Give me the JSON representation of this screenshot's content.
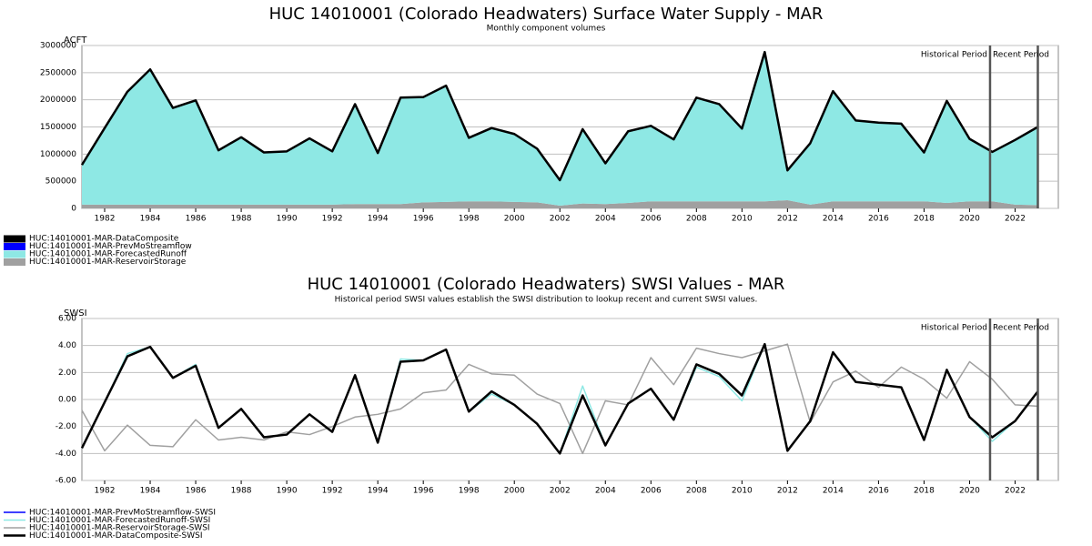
{
  "chart_data": [
    {
      "type": "area",
      "title": "HUC 14010001 (Colorado Headwaters) Surface Water Supply - MAR",
      "subtitle": "Monthly component volumes",
      "ylabel": "ACFT",
      "x": [
        1981,
        1982,
        1983,
        1984,
        1985,
        1986,
        1987,
        1988,
        1989,
        1990,
        1991,
        1992,
        1993,
        1994,
        1995,
        1996,
        1997,
        1998,
        1999,
        2000,
        2001,
        2002,
        2003,
        2004,
        2005,
        2006,
        2007,
        2008,
        2009,
        2010,
        2011,
        2012,
        2013,
        2014,
        2015,
        2016,
        2017,
        2018,
        2019,
        2020,
        2021,
        2022,
        2023
      ],
      "xlim": [
        1981,
        2023.9
      ],
      "xticks": [
        1982,
        1984,
        1986,
        1988,
        1990,
        1992,
        1994,
        1996,
        1998,
        2000,
        2002,
        2004,
        2006,
        2008,
        2010,
        2012,
        2014,
        2016,
        2018,
        2020,
        2022
      ],
      "ylim": [
        0,
        3000000
      ],
      "yticks": [
        0,
        500000,
        1000000,
        1500000,
        2000000,
        2500000,
        3000000
      ],
      "grid": true,
      "period_lines": [
        2020.9,
        2023
      ],
      "annotations": [
        "Historical Period",
        "Recent Period"
      ],
      "series": [
        {
          "name": "HUC:14010001-MAR-DataComposite",
          "color": "#000000",
          "style": "line",
          "values": [
            800000,
            1480000,
            2150000,
            2560000,
            1850000,
            1990000,
            1070000,
            1310000,
            1030000,
            1050000,
            1290000,
            1050000,
            1920000,
            1020000,
            2040000,
            2050000,
            2260000,
            1300000,
            1480000,
            1370000,
            1100000,
            520000,
            1460000,
            830000,
            1420000,
            1520000,
            1270000,
            2040000,
            1920000,
            1470000,
            2880000,
            700000,
            1200000,
            2160000,
            1620000,
            1580000,
            1560000,
            1030000,
            1980000,
            1280000,
            1040000,
            1260000,
            1500000
          ]
        },
        {
          "name": "HUC:14010001-MAR-PrevMoStreamflow",
          "color": "#0000ff",
          "style": "area",
          "values": [
            0,
            0,
            0,
            0,
            0,
            0,
            0,
            0,
            0,
            0,
            0,
            0,
            0,
            0,
            0,
            0,
            0,
            0,
            0,
            0,
            0,
            0,
            0,
            0,
            0,
            0,
            0,
            0,
            0,
            0,
            0,
            0,
            0,
            0,
            0,
            0,
            0,
            0,
            0,
            0,
            0,
            0,
            0
          ]
        },
        {
          "name": "HUC:14010001-MAR-ForecastedRunoff",
          "color": "#8ee8e4",
          "style": "area",
          "values": [
            730000,
            1410000,
            2080000,
            2490000,
            1780000,
            1920000,
            1000000,
            1240000,
            960000,
            980000,
            1220000,
            980000,
            1840000,
            940000,
            1960000,
            1940000,
            2140000,
            1170000,
            1350000,
            1250000,
            990000,
            470000,
            1370000,
            750000,
            1320000,
            1390000,
            1140000,
            1910000,
            1790000,
            1340000,
            2750000,
            550000,
            1130000,
            2030000,
            1490000,
            1450000,
            1430000,
            900000,
            1880000,
            1150000,
            910000,
            1190000,
            1440000
          ]
        },
        {
          "name": "HUC:14010001-MAR-ReservoirStorage",
          "color": "#a0a0a0",
          "style": "area",
          "values": [
            70000,
            70000,
            70000,
            70000,
            70000,
            70000,
            70000,
            70000,
            70000,
            70000,
            70000,
            70000,
            80000,
            80000,
            80000,
            110000,
            120000,
            130000,
            130000,
            120000,
            110000,
            50000,
            90000,
            80000,
            100000,
            130000,
            130000,
            130000,
            130000,
            130000,
            130000,
            150000,
            70000,
            130000,
            130000,
            130000,
            130000,
            130000,
            100000,
            130000,
            130000,
            70000,
            60000
          ]
        }
      ]
    },
    {
      "type": "line",
      "title": "HUC 14010001 (Colorado Headwaters) SWSI Values - MAR",
      "subtitle": "Historical period SWSI values establish the SWSI distribution to lookup recent and current SWSI values.",
      "ylabel": "SWSI",
      "x": [
        1981,
        1982,
        1983,
        1984,
        1985,
        1986,
        1987,
        1988,
        1989,
        1990,
        1991,
        1992,
        1993,
        1994,
        1995,
        1996,
        1997,
        1998,
        1999,
        2000,
        2001,
        2002,
        2003,
        2004,
        2005,
        2006,
        2007,
        2008,
        2009,
        2010,
        2011,
        2012,
        2013,
        2014,
        2015,
        2016,
        2017,
        2018,
        2019,
        2020,
        2021,
        2022,
        2023
      ],
      "xlim": [
        1981,
        2023.9
      ],
      "xticks": [
        1982,
        1984,
        1986,
        1988,
        1990,
        1992,
        1994,
        1996,
        1998,
        2000,
        2002,
        2004,
        2006,
        2008,
        2010,
        2012,
        2014,
        2016,
        2018,
        2020,
        2022
      ],
      "ylim": [
        -6,
        6
      ],
      "yticks": [
        {
          "value": -6,
          "label": "-6.00"
        },
        {
          "value": -4,
          "label": "-4.00"
        },
        {
          "value": -2,
          "label": "-2.00"
        },
        {
          "value": 0,
          "label": "0.00"
        },
        {
          "value": 2,
          "label": "2.00"
        },
        {
          "value": 4,
          "label": "4.00"
        },
        {
          "value": 6,
          "label": "6.00"
        }
      ],
      "grid": true,
      "period_lines": [
        2020.9,
        2023
      ],
      "annotations": [
        "Historical Period",
        "Recent Period"
      ],
      "series": [
        {
          "name": "HUC:14010001-MAR-PrevMoStreamflow-SWSI",
          "color": "#0000ff",
          "style": "line",
          "values": [
            null,
            null,
            null,
            null,
            null,
            null,
            null,
            null,
            null,
            null,
            null,
            null,
            null,
            null,
            null,
            null,
            null,
            null,
            null,
            null,
            null,
            null,
            null,
            null,
            null,
            null,
            null,
            null,
            null,
            null,
            null,
            null,
            null,
            null,
            null,
            null,
            null,
            null,
            null,
            null,
            null,
            null,
            null
          ]
        },
        {
          "name": "HUC:14010001-MAR-ForecastedRunoff-SWSI",
          "color": "#8ee8e4",
          "style": "line",
          "values": [
            -3.6,
            -0.2,
            3.4,
            3.9,
            1.6,
            2.6,
            -2.1,
            -0.7,
            -2.8,
            -2.6,
            -1.1,
            -2.4,
            1.8,
            -3.2,
            3.0,
            2.9,
            3.7,
            -0.9,
            0.4,
            -0.4,
            -1.8,
            -4.0,
            1.0,
            -3.4,
            -0.3,
            0.8,
            -1.5,
            2.4,
            1.7,
            -0.1,
            4.1,
            -3.8,
            -1.6,
            3.5,
            1.3,
            1.1,
            0.9,
            -3.0,
            2.2,
            -1.3,
            -3.1,
            -1.6,
            0.6
          ]
        },
        {
          "name": "HUC:14010001-MAR-ReservoirStorage-SWSI",
          "color": "#a0a0a0",
          "style": "line",
          "values": [
            -0.8,
            -3.8,
            -1.9,
            -3.4,
            -3.5,
            -1.5,
            -3.0,
            -2.8,
            -3.0,
            -2.4,
            -2.6,
            -2.0,
            -1.3,
            -1.1,
            -0.7,
            0.5,
            0.7,
            2.6,
            1.9,
            1.8,
            0.4,
            -0.3,
            -4.0,
            -0.1,
            -0.4,
            3.1,
            1.1,
            3.8,
            3.4,
            3.1,
            3.6,
            4.1,
            -1.7,
            1.3,
            2.1,
            0.9,
            2.4,
            1.5,
            0.1,
            2.8,
            1.5,
            -0.4,
            -0.5
          ]
        },
        {
          "name": "HUC:14010001-MAR-DataComposite-SWSI",
          "color": "#000000",
          "style": "line",
          "values": [
            -3.6,
            -0.2,
            3.2,
            3.9,
            1.6,
            2.5,
            -2.1,
            -0.7,
            -2.8,
            -2.6,
            -1.1,
            -2.4,
            1.8,
            -3.2,
            2.8,
            2.9,
            3.7,
            -0.9,
            0.6,
            -0.4,
            -1.8,
            -4.0,
            0.3,
            -3.4,
            -0.3,
            0.8,
            -1.5,
            2.6,
            1.9,
            0.3,
            4.1,
            -3.8,
            -1.6,
            3.5,
            1.3,
            1.1,
            0.9,
            -3.0,
            2.2,
            -1.3,
            -2.8,
            -1.6,
            0.6
          ]
        }
      ]
    }
  ]
}
